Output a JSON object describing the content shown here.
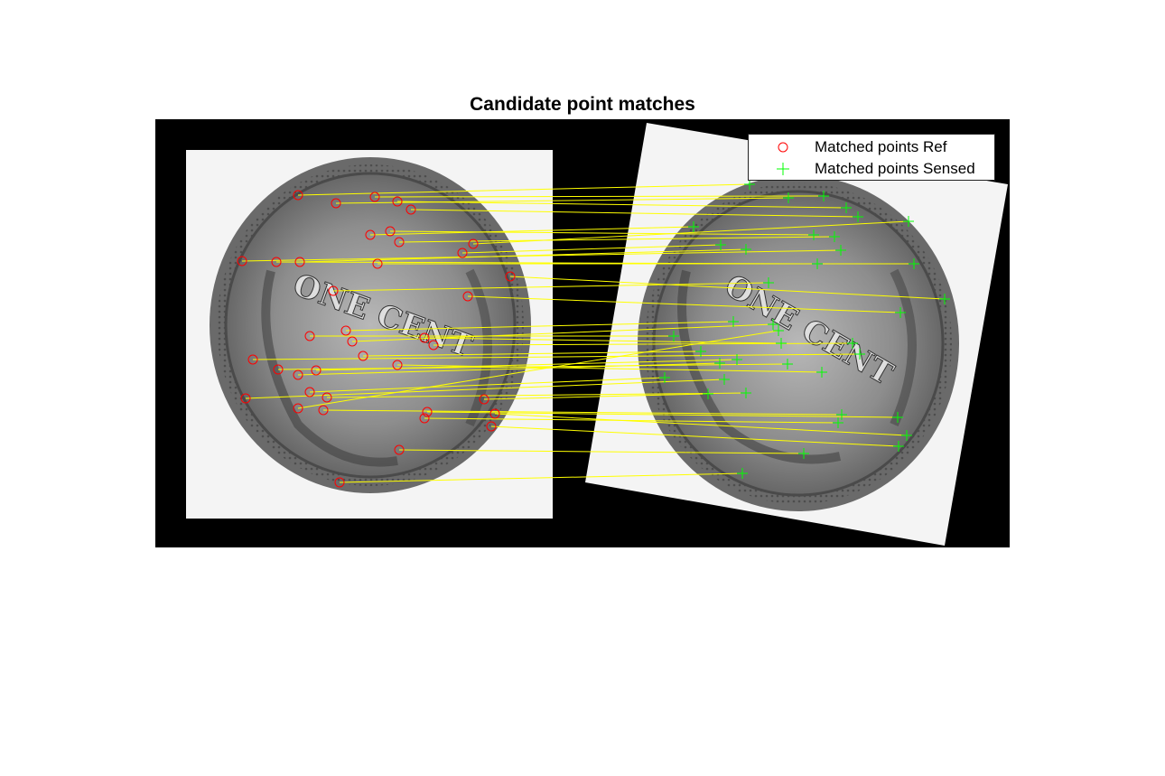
{
  "figure": {
    "title": "Candidate point matches"
  },
  "legend": {
    "ref_label": "Matched points Ref",
    "sensed_label": "Matched points Sensed"
  },
  "colors": {
    "background": "#000000",
    "image_paper": "#f4f4f4",
    "coin": "#8c8c8c",
    "ref_marker": "#ff0000",
    "sensed_marker": "#00ff00",
    "match_line": "#ffff00"
  },
  "images": {
    "ref": {
      "description_text": "ONE CENT"
    },
    "sensed": {
      "description_text": "ONE CENT"
    }
  },
  "chart_data": {
    "type": "scatter",
    "title": "Candidate point matches",
    "xlabel": "",
    "ylabel": "",
    "legend": "top-right",
    "series": [
      {
        "name": "Matched points Ref",
        "marker": "circle",
        "color": "#ff0000",
        "points": [
          [
            330,
            216
          ],
          [
            372,
            225
          ],
          [
            415,
            218
          ],
          [
            440,
            223
          ],
          [
            455,
            232
          ],
          [
            410,
            260
          ],
          [
            432,
            256
          ],
          [
            442,
            268
          ],
          [
            524,
            270
          ],
          [
            512,
            280
          ],
          [
            268,
            289
          ],
          [
            306,
            290
          ],
          [
            332,
            290
          ],
          [
            418,
            292
          ],
          [
            565,
            306
          ],
          [
            369,
            322
          ],
          [
            518,
            328
          ],
          [
            383,
            366
          ],
          [
            390,
            378
          ],
          [
            343,
            372
          ],
          [
            470,
            374
          ],
          [
            480,
            382
          ],
          [
            402,
            394
          ],
          [
            280,
            398
          ],
          [
            308,
            409
          ],
          [
            330,
            415
          ],
          [
            350,
            410
          ],
          [
            440,
            404
          ],
          [
            343,
            434
          ],
          [
            272,
            441
          ],
          [
            362,
            440
          ],
          [
            536,
            442
          ],
          [
            330,
            452
          ],
          [
            358,
            454
          ],
          [
            473,
            456
          ],
          [
            470,
            463
          ],
          [
            548,
            458
          ],
          [
            544,
            472
          ],
          [
            442,
            498
          ],
          [
            376,
            534
          ]
        ]
      },
      {
        "name": "Matched points Sensed",
        "marker": "plus",
        "color": "#00ff00",
        "points": [
          [
            830,
            204
          ],
          [
            873,
            219
          ],
          [
            912,
            217
          ],
          [
            937,
            230
          ],
          [
            950,
            240
          ],
          [
            1006,
            245
          ],
          [
            768,
            251
          ],
          [
            901,
            260
          ],
          [
            924,
            262
          ],
          [
            798,
            271
          ],
          [
            826,
            276
          ],
          [
            931,
            277
          ],
          [
            905,
            292
          ],
          [
            1012,
            292
          ],
          [
            851,
            313
          ],
          [
            1046,
            331
          ],
          [
            997,
            346
          ],
          [
            812,
            356
          ],
          [
            856,
            359
          ],
          [
            862,
            366
          ],
          [
            746,
            372
          ],
          [
            865,
            380
          ],
          [
            944,
            380
          ],
          [
            776,
            389
          ],
          [
            952,
            392
          ],
          [
            872,
            403
          ],
          [
            797,
            402
          ],
          [
            816,
            398
          ],
          [
            910,
            412
          ],
          [
            736,
            418
          ],
          [
            802,
            420
          ],
          [
            826,
            435
          ],
          [
            784,
            436
          ],
          [
            932,
            459
          ],
          [
            994,
            462
          ],
          [
            928,
            468
          ],
          [
            1004,
            482
          ],
          [
            890,
            502
          ],
          [
            995,
            494
          ],
          [
            822,
            524
          ]
        ]
      }
    ],
    "match_pairs": [
      [
        0,
        0
      ],
      [
        1,
        1
      ],
      [
        2,
        2
      ],
      [
        3,
        3
      ],
      [
        4,
        4
      ],
      [
        5,
        6
      ],
      [
        6,
        7
      ],
      [
        7,
        8
      ],
      [
        8,
        5
      ],
      [
        9,
        9
      ],
      [
        10,
        11
      ],
      [
        11,
        12
      ],
      [
        12,
        10
      ],
      [
        13,
        13
      ],
      [
        14,
        15
      ],
      [
        15,
        14
      ],
      [
        16,
        16
      ],
      [
        17,
        17
      ],
      [
        18,
        18
      ],
      [
        19,
        20
      ],
      [
        20,
        21
      ],
      [
        21,
        22
      ],
      [
        22,
        23
      ],
      [
        23,
        24
      ],
      [
        24,
        25
      ],
      [
        25,
        26
      ],
      [
        26,
        27
      ],
      [
        27,
        28
      ],
      [
        28,
        29
      ],
      [
        29,
        30
      ],
      [
        30,
        31
      ],
      [
        31,
        32
      ],
      [
        32,
        19
      ],
      [
        33,
        33
      ],
      [
        34,
        34
      ],
      [
        35,
        35
      ],
      [
        36,
        36
      ],
      [
        37,
        38
      ],
      [
        38,
        37
      ],
      [
        39,
        39
      ]
    ]
  }
}
